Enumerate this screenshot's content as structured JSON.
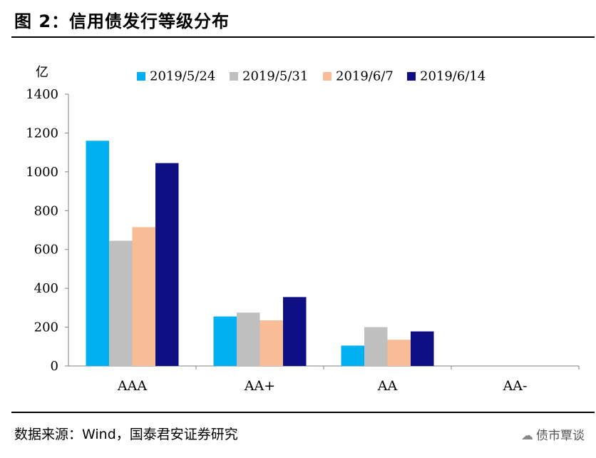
{
  "figure": {
    "title": "图 2：信用债发行等级分布",
    "source": "数据来源：Wind，国泰君安证券研究",
    "watermark": "债市覃谈"
  },
  "chart_data": {
    "type": "bar",
    "ylabel": "亿",
    "xlabel": "",
    "ylim": [
      0,
      1400
    ],
    "yticks": [
      0,
      200,
      400,
      600,
      800,
      1000,
      1200,
      1400
    ],
    "categories": [
      "AAA",
      "AA+",
      "AA",
      "AA-"
    ],
    "series": [
      {
        "name": "2019/5/24",
        "color": "#00b0f0",
        "values": [
          1160,
          255,
          105,
          0
        ]
      },
      {
        "name": "2019/5/31",
        "color": "#bfbfbf",
        "values": [
          645,
          275,
          200,
          0
        ]
      },
      {
        "name": "2019/6/7",
        "color": "#f8bc96",
        "values": [
          715,
          235,
          135,
          0
        ]
      },
      {
        "name": "2019/6/14",
        "color": "#0d0f82",
        "values": [
          1045,
          355,
          178,
          0
        ]
      }
    ],
    "legend": "top",
    "grid": false
  }
}
